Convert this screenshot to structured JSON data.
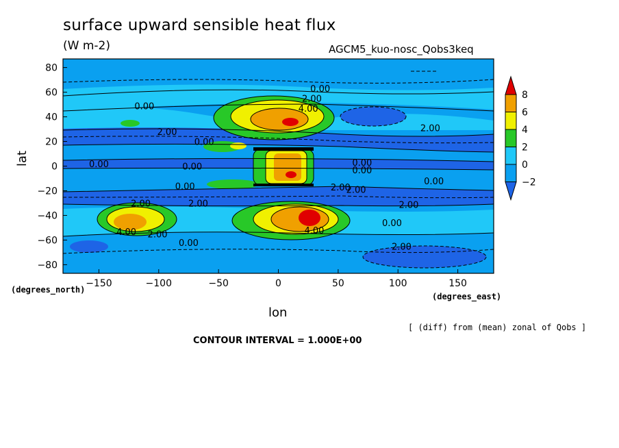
{
  "header": {
    "title": "surface upward sensible heat flux",
    "units": "(W m-2)",
    "experiment": "AGCM5_kuo-nosc_Qobs3keq"
  },
  "footer": {
    "contour_interval": "CONTOUR INTERVAL = 1.000E+00",
    "note": "[ (diff) from (mean) zonal of Qobs ]"
  },
  "chart_data": {
    "type": "heatmap",
    "title": "surface upward sensible heat flux",
    "subtitle": "(W m-2)",
    "xlabel": "lon",
    "ylabel": "lat",
    "x_units": "(degrees_east)",
    "y_units": "(degrees_north)",
    "xlim": [
      -180,
      180
    ],
    "ylim": [
      -87,
      87
    ],
    "x_ticks": [
      -150,
      -100,
      -50,
      0,
      50,
      100,
      150
    ],
    "y_ticks": [
      80,
      60,
      40,
      20,
      0,
      -20,
      -40,
      -60,
      -80
    ],
    "colorbar": {
      "levels": [
        -2,
        0,
        2,
        4,
        6,
        8
      ],
      "colors": [
        "#1e64e6",
        "#0aa0f0",
        "#20c8f8",
        "#28c828",
        "#f0f000",
        "#f0a000",
        "#e00000"
      ]
    },
    "contour_labels": [
      {
        "text": "0.00",
        "lon": 35,
        "lat": 63
      },
      {
        "text": "2.00",
        "lon": 28,
        "lat": 55
      },
      {
        "text": "4.00",
        "lon": 25,
        "lat": 47
      },
      {
        "text": "0.00",
        "lon": -112,
        "lat": 49
      },
      {
        "text": "2.00",
        "lon": -93,
        "lat": 28
      },
      {
        "text": "0.00",
        "lon": -62,
        "lat": 20
      },
      {
        "text": "2.00",
        "lon": 127,
        "lat": 31
      },
      {
        "text": "0.00",
        "lon": -150,
        "lat": 2
      },
      {
        "text": "0.00",
        "lon": -72,
        "lat": 0
      },
      {
        "text": "0.00",
        "lon": 70,
        "lat": 3
      },
      {
        "text": "0.00",
        "lon": 70,
        "lat": -3
      },
      {
        "text": "0.00",
        "lon": -78,
        "lat": -16
      },
      {
        "text": "2.00",
        "lon": 52,
        "lat": -17
      },
      {
        "text": "2.00",
        "lon": 65,
        "lat": -19
      },
      {
        "text": "0.00",
        "lon": 130,
        "lat": -12
      },
      {
        "text": "2.00",
        "lon": -115,
        "lat": -30
      },
      {
        "text": "2.00",
        "lon": -67,
        "lat": -30
      },
      {
        "text": "2.00",
        "lon": 109,
        "lat": -31
      },
      {
        "text": "0.00",
        "lon": 95,
        "lat": -46
      },
      {
        "text": "4.00",
        "lon": -127,
        "lat": -53
      },
      {
        "text": "2.00",
        "lon": -101,
        "lat": -55
      },
      {
        "text": "0.00",
        "lon": -75,
        "lat": -62
      },
      {
        "text": "2.00",
        "lon": 103,
        "lat": -65
      },
      {
        "text": "4.00",
        "lon": 30,
        "lat": -52
      }
    ]
  }
}
